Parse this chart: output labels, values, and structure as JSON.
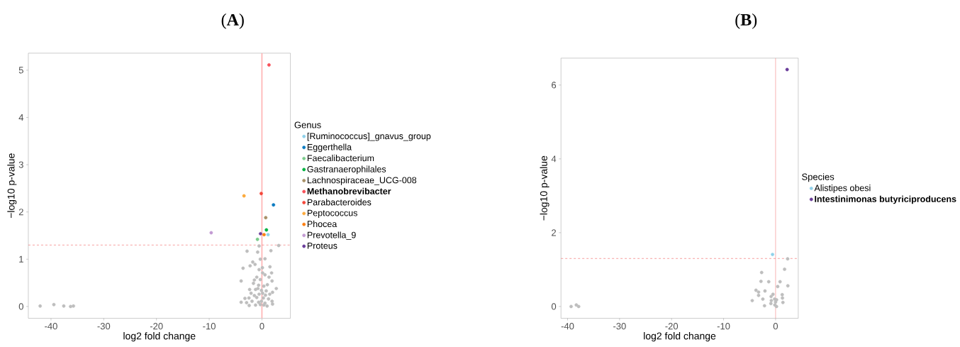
{
  "chart_data": [
    {
      "type": "scatter",
      "title": "(**A**)",
      "xlabel": "log2 fold change",
      "ylabel": "−log10 p-value",
      "legend_title": "Genus",
      "legend": "right",
      "marker": "circle",
      "grid": false,
      "xlim": [
        -44.3,
        5.4
      ],
      "ylim": [
        -0.25,
        5.36
      ],
      "xticks": [
        -40,
        -30,
        -20,
        -10,
        0
      ],
      "yticks": [
        0,
        1,
        2,
        3,
        4,
        5
      ],
      "ref_lines": [
        {
          "axis": "x",
          "value": 0,
          "color": "#ffb0b0",
          "line_style": "solid"
        },
        {
          "axis": "y",
          "value": 1.3,
          "color": "#f06060",
          "line_style": "dashed"
        }
      ],
      "series": [
        {
          "color": "#bebebe",
          "x": [
            -42.06,
            -39.46,
            -37.58,
            -36.29,
            -35.75,
            -0.54,
            3.18,
            -2.82,
            -0.81,
            1.7,
            -0.31,
            0.58,
            -1.74,
            -1.3,
            -2.24,
            -3.58,
            1.52,
            -0.54,
            0.09,
            1.83,
            0.13,
            0.58,
            -0.98,
            1.34,
            -3.94,
            -1.43,
            -0.31,
            1.92,
            -1.61,
            -0.63,
            1.03,
            0.36,
            2.73,
            -1.21,
            -0.09,
            2.01,
            -2.06,
            -0.54,
            0.67,
            -3.22,
            -2.46,
            -0.98,
            0.27,
            1.25,
            -3.94,
            -2.91,
            -1.88,
            -0.63,
            -0.09,
            0.58,
            1.92,
            -2.42,
            -1.21,
            0.98,
            2.01,
            -0.31,
            0.36,
            -2.33,
            -0.76,
            0.13,
            -1.43,
            0.81,
            1.48
          ],
          "values": [
            0.01,
            0.04,
            0.01,
            0.0,
            0.01,
            1.28,
            1.29,
            1.17,
            1.15,
            1.18,
            1.0,
            1.01,
            0.94,
            0.89,
            0.86,
            0.81,
            0.84,
            0.78,
            0.82,
            0.71,
            0.71,
            0.67,
            0.62,
            0.62,
            0.54,
            0.56,
            0.57,
            0.54,
            0.49,
            0.45,
            0.46,
            0.43,
            0.38,
            0.36,
            0.34,
            0.3,
            0.28,
            0.26,
            0.24,
            0.17,
            0.18,
            0.19,
            0.18,
            0.16,
            0.09,
            0.08,
            0.11,
            0.09,
            0.11,
            0.07,
            0.11,
            0.02,
            0.03,
            0.01,
            0.05,
            0.04,
            0.03,
            0.36,
            0.38,
            0.28,
            0.23,
            0.33,
            0.26
          ]
        },
        {
          "name": "[Ruminococcus]_gnavus_group",
          "color": "#8fd1ea",
          "x": [
            1.16
          ],
          "values": [
            1.52
          ]
        },
        {
          "name": "Eggerthella",
          "color": "#0a7bc1",
          "x": [
            2.19
          ],
          "values": [
            2.15
          ]
        },
        {
          "name": "Faecalibacterium",
          "color": "#7acb8a",
          "x": [
            -0.85
          ],
          "values": [
            1.42
          ]
        },
        {
          "name": "Gastranaerophilales",
          "color": "#00b140",
          "x": [
            0.85
          ],
          "values": [
            1.62
          ]
        },
        {
          "name": "Lachnospiraceae_UCG-008",
          "color": "#a89067",
          "x": [
            0.72
          ],
          "values": [
            1.88
          ]
        },
        {
          "name": "**Methanobrevibacter**",
          "color": "#f8525a",
          "x": [
            1.34
          ],
          "values": [
            5.11
          ]
        },
        {
          "name": "Parabacteroides",
          "color": "#f4473a",
          "x": [
            -0.13
          ],
          "values": [
            2.39
          ]
        },
        {
          "name": "Peptococcus",
          "color": "#fcaa3c",
          "x": [
            -3.4
          ],
          "values": [
            2.34
          ]
        },
        {
          "name": "Phocea",
          "color": "#fc7f12",
          "x": [
            0.4
          ],
          "values": [
            1.52
          ]
        },
        {
          "name": "Prevotella_9",
          "color": "#c39bd3",
          "x": [
            -9.62
          ],
          "values": [
            1.56
          ]
        },
        {
          "name": "Proteus",
          "color": "#6a3d9a",
          "x": [
            -0.27
          ],
          "values": [
            1.54
          ]
        }
      ]
    },
    {
      "type": "scatter",
      "title": "(**B**)",
      "xlabel": "log2 fold change",
      "ylabel": "−log10 p-value",
      "legend_title": "Species",
      "legend": "right",
      "marker": "circle",
      "grid": false,
      "xlim": [
        -41.27,
        4.36
      ],
      "ylim": [
        -0.32,
        6.73
      ],
      "xticks": [
        -40,
        -30,
        -20,
        -10,
        0
      ],
      "yticks": [
        0,
        2,
        4,
        6
      ],
      "ref_lines": [
        {
          "axis": "x",
          "value": 0,
          "color": "#f08080",
          "line_style": "solid"
        },
        {
          "axis": "y",
          "value": 1.3,
          "color": "#f06060",
          "line_style": "dashed"
        }
      ],
      "series": [
        {
          "color": "#bebebe",
          "x": [
            -39.32,
            -38.32,
            -37.87,
            2.32,
            1.73,
            -2.68,
            -2.81,
            -1.32,
            0.86,
            0.41,
            2.36,
            -3.77,
            -3.27,
            -2.04,
            -3.27,
            -0.5,
            -0.86,
            1.09,
            1.27,
            1.32,
            -4.49,
            -2.45,
            -0.82,
            -0.18,
            0.18,
            0.0,
            1.41,
            -0.91,
            -2.13,
            -0.14,
            0.18
          ],
          "values": [
            0.0,
            0.04,
            0.0,
            1.29,
            1.01,
            0.92,
            0.68,
            0.67,
            0.67,
            0.54,
            0.56,
            0.44,
            0.39,
            0.42,
            0.3,
            0.33,
            0.27,
            null,
            0.32,
            0.23,
            0.16,
            0.2,
            0.16,
            0.2,
            0.18,
            0.12,
            0.11,
            0.08,
            0.02,
            0.04,
            0.0
          ]
        },
        {
          "name": "Alistipes obesi",
          "color": "#8fd1ea",
          "x": [
            -0.59
          ],
          "values": [
            1.41
          ]
        },
        {
          "name": "**Intestinimonas butyriciproducens**",
          "color": "#6a3d9a",
          "x": [
            2.22
          ],
          "values": [
            6.42
          ]
        }
      ]
    }
  ]
}
